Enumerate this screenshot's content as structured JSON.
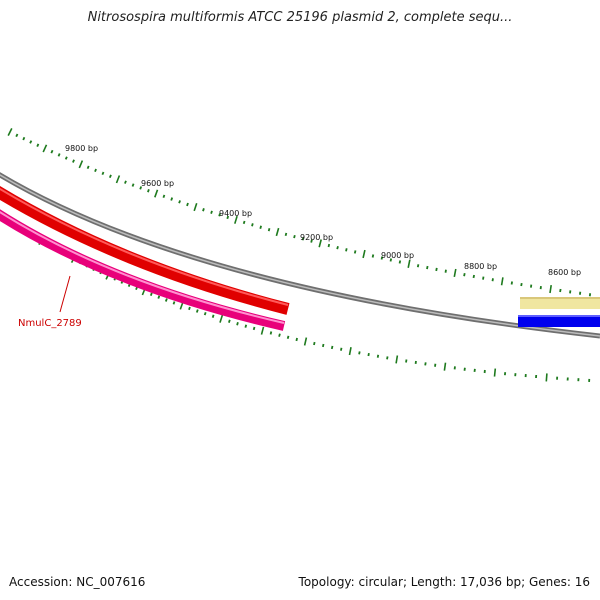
{
  "title": "Nitrosospira multiformis ATCC 25196 plasmid 2, complete sequ...",
  "tick_labels": [
    "9800 bp",
    "9600 bp",
    "9400 bp",
    "9200 bp",
    "9000 bp",
    "8800 bp",
    "8600 bp"
  ],
  "genes": [
    {
      "label": "NmulC_2789",
      "color": "#ff1493",
      "strand": "reverse"
    },
    {
      "label": "",
      "color": "#ff0000",
      "strand": "reverse"
    },
    {
      "label": "",
      "color": "#f0e6a0",
      "strand": "forward"
    },
    {
      "label": "",
      "color": "#0000ee",
      "strand": "forward"
    }
  ],
  "colors": {
    "backbone": "#808080",
    "ticks": "#1e7a1e",
    "label": "#cc0000"
  },
  "footer": {
    "accession": "Accession: NC_007616",
    "summary": "Topology: circular; Length: 17,036 bp; Genes: 16"
  }
}
